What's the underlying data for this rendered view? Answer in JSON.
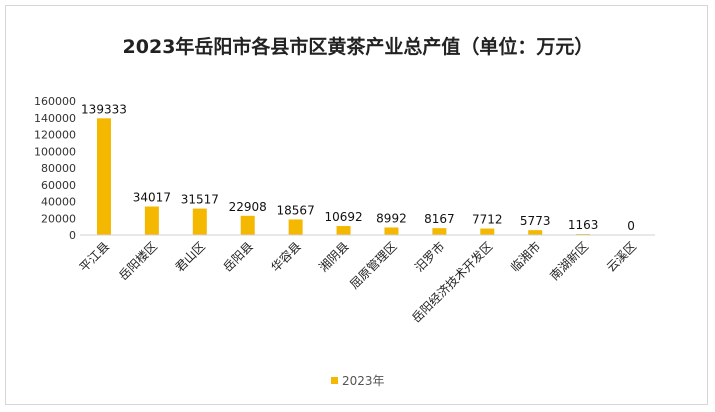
{
  "chart_data": {
    "type": "bar",
    "title": "2023年岳阳市各县市区黄茶产业总产值（单位：万元）",
    "categories": [
      "平江县",
      "岳阳楼区",
      "君山区",
      "岳阳县",
      "华容县",
      "湘阴县",
      "屈原管理区",
      "汨罗市",
      "岳阳经济技术开发区",
      "临湘市",
      "南湖新区",
      "云溪区"
    ],
    "series": [
      {
        "name": "2023年",
        "values": [
          139333,
          34017,
          31517,
          22908,
          18567,
          10692,
          8992,
          8167,
          7712,
          5773,
          1163,
          0
        ],
        "color": "#F5B800"
      }
    ],
    "data_labels": [
      "139333",
      "34017",
      "31517",
      "22908",
      "18567",
      "10692",
      "8992",
      "8167",
      "7712",
      "5773",
      "1163",
      "0"
    ],
    "yticks": [
      0,
      20000,
      40000,
      60000,
      80000,
      100000,
      120000,
      140000,
      160000
    ],
    "ytick_labels": [
      "0",
      "20000",
      "40000",
      "60000",
      "80000",
      "100000",
      "120000",
      "140000",
      "160000"
    ],
    "ylim": [
      0,
      160000
    ],
    "grid": false,
    "legend_position": "bottom"
  }
}
